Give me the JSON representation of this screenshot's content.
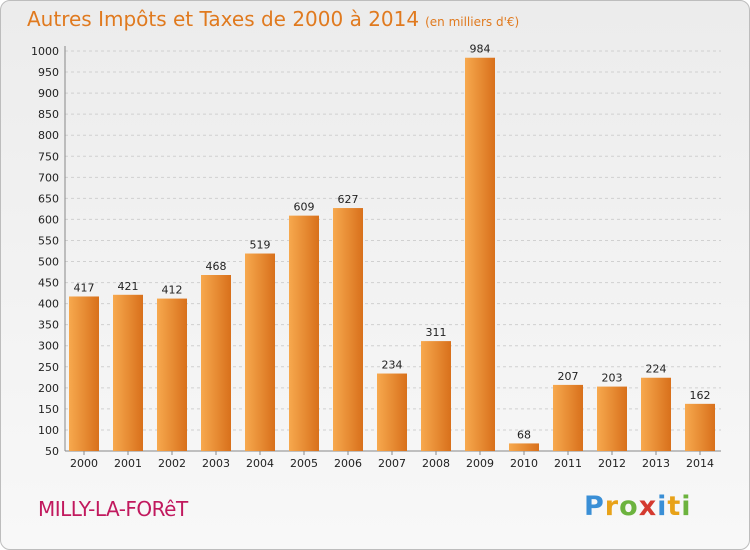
{
  "title": "Autres Impôts et Taxes de 2000 à 2014",
  "subtitle": "(en milliers d'€)",
  "city": "MILLY-LA-FORêT",
  "logo": {
    "letters": [
      "P",
      "r",
      "o",
      "x",
      "i",
      "t",
      "i"
    ],
    "colors": [
      "#3a8fd6",
      "#e8a219",
      "#6cb33e",
      "#d43a2f",
      "#3a8fd6",
      "#e8a219",
      "#6cb33e"
    ]
  },
  "colors": {
    "bar_light": "#f7a94e",
    "bar_dark": "#d8701b",
    "title": "#e07a1f",
    "city": "#c1195e"
  },
  "chart_data": {
    "type": "bar",
    "categories": [
      "2000",
      "2001",
      "2002",
      "2003",
      "2004",
      "2005",
      "2006",
      "2007",
      "2008",
      "2009",
      "2010",
      "2011",
      "2012",
      "2013",
      "2014"
    ],
    "values": [
      417,
      421,
      412,
      468,
      519,
      609,
      627,
      234,
      311,
      984,
      68,
      207,
      203,
      224,
      162
    ],
    "ylim": [
      50,
      1000
    ],
    "yticks": [
      50,
      100,
      150,
      200,
      250,
      300,
      350,
      400,
      450,
      500,
      550,
      600,
      650,
      700,
      750,
      800,
      850,
      900,
      950,
      1000
    ],
    "grid": true
  }
}
